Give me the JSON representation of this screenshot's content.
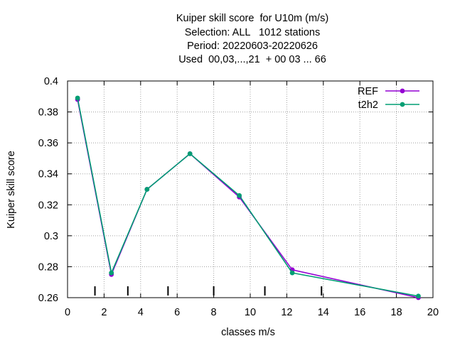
{
  "chart_data": {
    "type": "line",
    "title_lines": [
      "Kuiper skill score  for U10m (m/s)",
      "Selection: ALL   1012 stations",
      "Period: 20220603-20220626",
      "Used  00,03,...,21  + 00 03 ... 66"
    ],
    "xlabel": "classes m/s",
    "ylabel": "Kuiper skill score",
    "xlim": [
      0,
      20
    ],
    "ylim": [
      0.26,
      0.4
    ],
    "xticks": [
      "0",
      "2",
      "4",
      "6",
      "8",
      "10",
      "12",
      "14",
      "16",
      "18",
      "20"
    ],
    "yticks": [
      "0.26",
      "0.28",
      "0.3",
      "0.32",
      "0.34",
      "0.36",
      "0.38",
      "0.4"
    ],
    "grid": true,
    "legend_position": "top-right",
    "class_boundaries": [
      1.5,
      3.3,
      5.5,
      8.0,
      10.8,
      13.9
    ],
    "series": [
      {
        "name": "REF",
        "color": "#9400d3",
        "x": [
          0.55,
          2.4,
          4.35,
          6.7,
          9.4,
          12.3,
          19.2
        ],
        "y": [
          0.388,
          0.275,
          0.33,
          0.353,
          0.325,
          0.278,
          0.26
        ]
      },
      {
        "name": "t2h2",
        "color": "#009e73",
        "x": [
          0.55,
          2.4,
          4.35,
          6.7,
          9.4,
          12.3,
          19.2
        ],
        "y": [
          0.389,
          0.276,
          0.33,
          0.353,
          0.326,
          0.276,
          0.261
        ]
      }
    ]
  }
}
